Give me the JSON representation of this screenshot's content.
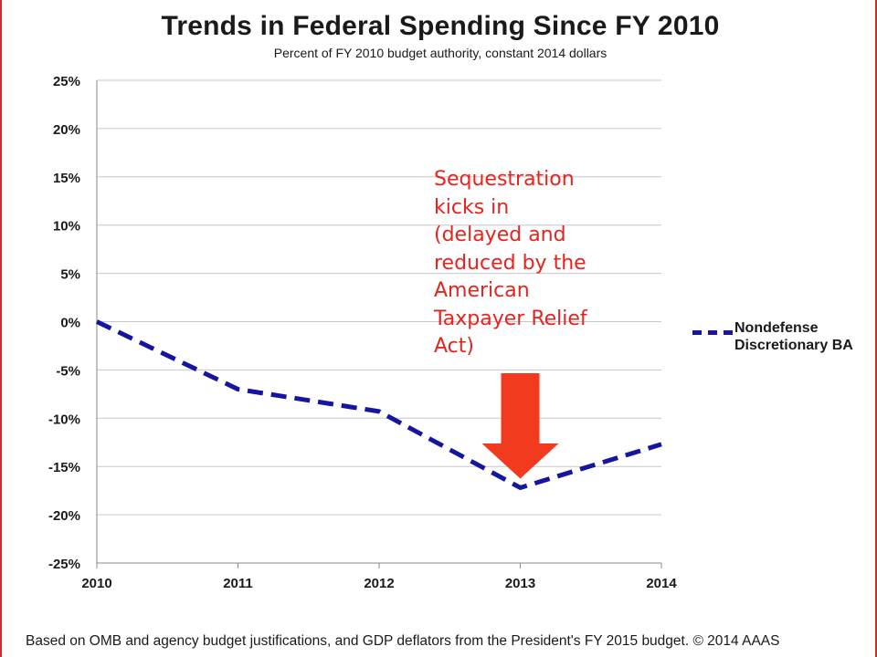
{
  "chart_data": {
    "type": "line",
    "title": "Trends in Federal Spending Since FY 2010",
    "subtitle": "Percent of FY 2010 budget authority, constant 2014 dollars",
    "x": [
      "2010",
      "2011",
      "2012",
      "2013",
      "2014"
    ],
    "series": [
      {
        "name": "Nondefense Discretionary BA",
        "values": [
          0,
          -7.0,
          -9.3,
          -17.2,
          -12.7
        ],
        "color": "#1515a0",
        "style": "dashed"
      }
    ],
    "ylim": [
      -25,
      25
    ],
    "yticks": [
      25,
      20,
      15,
      10,
      5,
      0,
      -5,
      -10,
      -15,
      -20,
      -25
    ],
    "ytick_labels": [
      "25%",
      "20%",
      "15%",
      "10%",
      "5%",
      "0%",
      "-5%",
      "-10%",
      "-15%",
      "-20%",
      "-25%"
    ],
    "grid": true,
    "legend_position": "right",
    "annotation": {
      "text": "Sequestration\nkicks in\n(delayed and\nreduced by the\nAmerican\nTaxpayer Relief\nAct)",
      "points_to_x": "2013",
      "color": "#e8231d"
    }
  },
  "footer": {
    "source_note": "Based on OMB and agency budget justifications, and GDP deflators from the President's FY 2015 budget. © 2014 AAAS"
  },
  "colors": {
    "accent_red": "#e8231d",
    "arrow_red": "#f23a1e",
    "series_blue": "#1515a0",
    "grid": "#c7c7c7"
  }
}
